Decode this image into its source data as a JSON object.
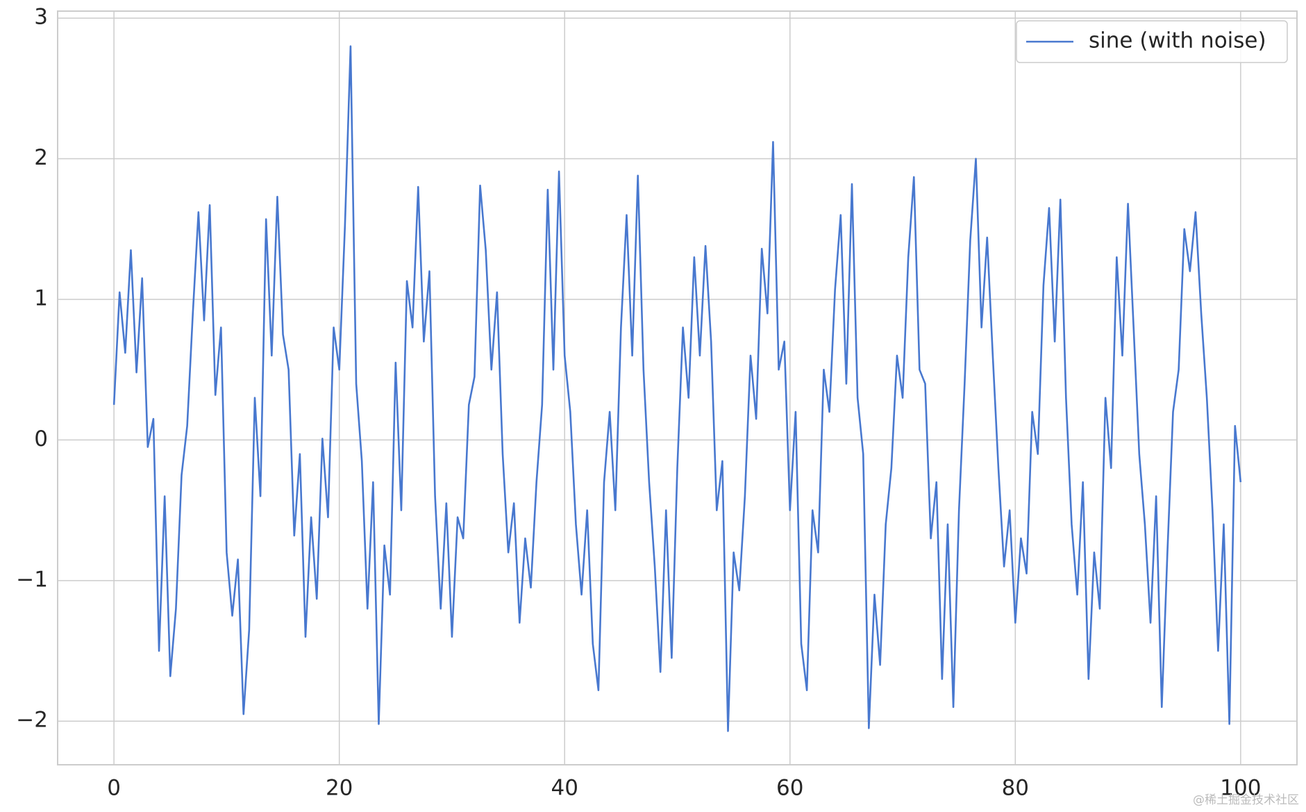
{
  "chart_data": {
    "type": "line",
    "x": [
      0,
      0.5,
      1,
      1.5,
      2,
      2.5,
      3,
      3.5,
      4,
      4.5,
      5,
      5.5,
      6,
      6.5,
      7,
      7.5,
      8,
      8.5,
      9,
      9.5,
      10,
      10.5,
      11,
      11.5,
      12,
      12.5,
      13,
      13.5,
      14,
      14.5,
      15,
      15.5,
      16,
      16.5,
      17,
      17.5,
      18,
      18.5,
      19,
      19.5,
      20,
      20.5,
      21,
      21.5,
      22,
      22.5,
      23,
      23.5,
      24,
      24.5,
      25,
      25.5,
      26,
      26.5,
      27,
      27.5,
      28,
      28.5,
      29,
      29.5,
      30,
      30.5,
      31,
      31.5,
      32,
      32.5,
      33,
      33.5,
      34,
      34.5,
      35,
      35.5,
      36,
      36.5,
      37,
      37.5,
      38,
      38.5,
      39,
      39.5,
      40,
      40.5,
      41,
      41.5,
      42,
      42.5,
      43,
      43.5,
      44,
      44.5,
      45,
      45.5,
      46,
      46.5,
      47,
      47.5,
      48,
      48.5,
      49,
      49.5,
      50,
      50.5,
      51,
      51.5,
      52,
      52.5,
      53,
      53.5,
      54,
      54.5,
      55,
      55.5,
      56,
      56.5,
      57,
      57.5,
      58,
      58.5,
      59,
      59.5,
      60,
      60.5,
      61,
      61.5,
      62,
      62.5,
      63,
      63.5,
      64,
      64.5,
      65,
      65.5,
      66,
      66.5,
      67,
      67.5,
      68,
      68.5,
      69,
      69.5,
      70,
      70.5,
      71,
      71.5,
      72,
      72.5,
      73,
      73.5,
      74,
      74.5,
      75,
      75.5,
      76,
      76.5,
      77,
      77.5,
      78,
      78.5,
      79,
      79.5,
      80,
      80.5,
      81,
      81.5,
      82,
      82.5,
      83,
      83.5,
      84,
      84.5,
      85,
      85.5,
      86,
      86.5,
      87,
      87.5,
      88,
      88.5,
      89,
      89.5,
      90,
      90.5,
      91,
      91.5,
      92,
      92.5,
      93,
      93.5,
      94,
      94.5,
      95,
      95.5,
      96,
      96.5,
      97,
      97.5,
      98,
      98.5,
      99,
      99.5,
      100
    ],
    "series": [
      {
        "name": "sine (with noise)",
        "color": "#4878cf",
        "values": [
          0.25,
          1.05,
          0.62,
          1.35,
          0.48,
          1.15,
          -0.05,
          0.15,
          -1.5,
          -0.4,
          -1.68,
          -1.2,
          -0.25,
          0.1,
          0.9,
          1.62,
          0.85,
          1.67,
          0.32,
          0.8,
          -0.8,
          -1.25,
          -0.85,
          -1.95,
          -1.35,
          0.3,
          -0.4,
          1.57,
          0.6,
          1.73,
          0.75,
          0.5,
          -0.68,
          -0.1,
          -1.4,
          -0.55,
          -1.13,
          0.01,
          -0.55,
          0.8,
          0.5,
          1.52,
          2.8,
          0.4,
          -0.15,
          -1.2,
          -0.3,
          -2.02,
          -0.75,
          -1.1,
          0.55,
          -0.5,
          1.13,
          0.8,
          1.8,
          0.7,
          1.2,
          -0.4,
          -1.2,
          -0.45,
          -1.4,
          -0.55,
          -0.7,
          0.25,
          0.45,
          1.81,
          1.35,
          0.5,
          1.05,
          -0.1,
          -0.8,
          -0.45,
          -1.3,
          -0.7,
          -1.05,
          -0.3,
          0.25,
          1.78,
          0.5,
          1.91,
          0.6,
          0.2,
          -0.6,
          -1.1,
          -0.5,
          -1.45,
          -1.78,
          -0.3,
          0.2,
          -0.5,
          0.8,
          1.6,
          0.6,
          1.88,
          0.5,
          -0.3,
          -0.9,
          -1.65,
          -0.5,
          -1.55,
          -0.2,
          0.8,
          0.3,
          1.3,
          0.6,
          1.38,
          0.7,
          -0.5,
          -0.15,
          -2.07,
          -0.8,
          -1.07,
          -0.4,
          0.6,
          0.15,
          1.36,
          0.9,
          2.12,
          0.5,
          0.7,
          -0.5,
          0.2,
          -1.45,
          -1.78,
          -0.5,
          -0.8,
          0.5,
          0.2,
          1.07,
          1.6,
          0.4,
          1.82,
          0.3,
          -0.1,
          -2.05,
          -1.1,
          -1.6,
          -0.6,
          -0.2,
          0.6,
          0.3,
          1.3,
          1.87,
          0.5,
          0.4,
          -0.7,
          -0.3,
          -1.7,
          -0.6,
          -1.9,
          -0.5,
          0.4,
          1.42,
          2.0,
          0.8,
          1.44,
          0.6,
          -0.2,
          -0.9,
          -0.5,
          -1.3,
          -0.7,
          -0.95,
          0.2,
          -0.1,
          1.1,
          1.65,
          0.7,
          1.71,
          0.3,
          -0.6,
          -1.1,
          -0.3,
          -1.7,
          -0.8,
          -1.2,
          0.3,
          -0.2,
          1.3,
          0.6,
          1.68,
          0.8,
          -0.1,
          -0.6,
          -1.3,
          -0.4,
          -1.9,
          -0.8,
          0.2,
          0.5,
          1.5,
          1.2,
          1.62,
          0.9,
          0.3,
          -0.5,
          -1.5,
          -0.6,
          -2.02,
          0.1,
          -0.3
        ]
      }
    ],
    "xlim": [
      -5,
      105
    ],
    "ylim": [
      -2.31,
      3.05
    ],
    "xticks": [
      0,
      20,
      40,
      60,
      80,
      100
    ],
    "yticks": [
      {
        "value": -2,
        "label": "−2"
      },
      {
        "value": -1,
        "label": "−1"
      },
      0,
      1,
      2,
      3
    ],
    "grid": true,
    "legend": "upper right",
    "watermark": "@稀土掘金技术社区"
  }
}
